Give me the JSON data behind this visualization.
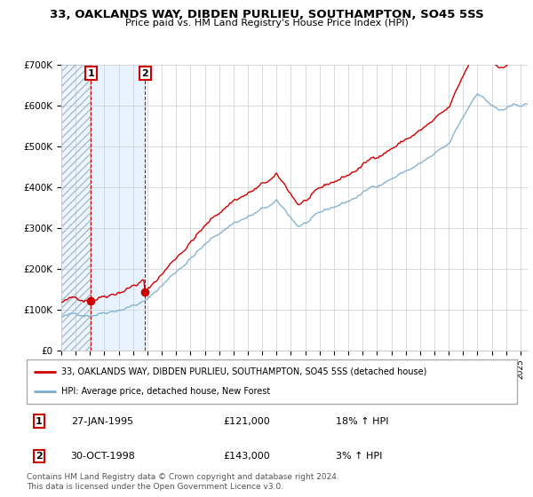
{
  "title": "33, OAKLANDS WAY, DIBDEN PURLIEU, SOUTHAMPTON, SO45 5SS",
  "subtitle": "Price paid vs. HM Land Registry's House Price Index (HPI)",
  "sale1_label": "27-JAN-1995",
  "sale1_price": 121000,
  "sale1_year": 1995.07,
  "sale1_hpi_text": "18% ↑ HPI",
  "sale2_label": "30-OCT-1998",
  "sale2_price": 143000,
  "sale2_year": 1998.83,
  "sale2_hpi_text": "3% ↑ HPI",
  "legend_property": "33, OAKLANDS WAY, DIBDEN PURLIEU, SOUTHAMPTON, SO45 5SS (detached house)",
  "legend_hpi": "HPI: Average price, detached house, New Forest",
  "footer": "Contains HM Land Registry data © Crown copyright and database right 2024.\nThis data is licensed under the Open Government Licence v3.0.",
  "property_color": "#cc0000",
  "hpi_color": "#7aadcc",
  "ylim_min": 0,
  "ylim_max": 700000,
  "year_start": 1993,
  "year_end": 2025.5
}
